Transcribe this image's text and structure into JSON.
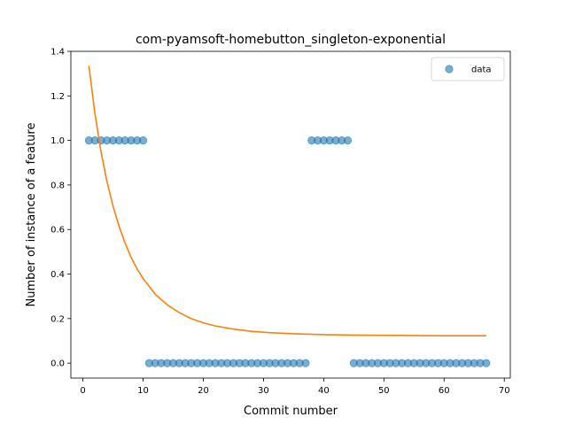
{
  "chart_data": {
    "type": "scatter",
    "title": "com-pyamsoft-homebutton_singleton-exponential",
    "xlabel": "Commit number",
    "ylabel": "Number of instance of a feature",
    "xlim": [
      -2,
      71
    ],
    "ylim": [
      -0.067,
      1.4
    ],
    "xticks": [
      0,
      10,
      20,
      30,
      40,
      50,
      60,
      70
    ],
    "yticks": [
      0.0,
      0.2,
      0.4,
      0.6,
      0.8,
      1.0,
      1.2,
      1.4
    ],
    "legend": {
      "placement": "top-right",
      "entries": [
        "data"
      ]
    },
    "grid": false,
    "series": [
      {
        "name": "data",
        "kind": "points",
        "color": "#1f77b4",
        "x": [
          1,
          2,
          3,
          4,
          5,
          6,
          7,
          8,
          9,
          10,
          11,
          12,
          13,
          14,
          15,
          16,
          17,
          18,
          19,
          20,
          21,
          22,
          23,
          24,
          25,
          26,
          27,
          28,
          29,
          30,
          31,
          32,
          33,
          34,
          35,
          36,
          37,
          38,
          39,
          40,
          41,
          42,
          43,
          44,
          45,
          46,
          47,
          48,
          49,
          50,
          51,
          52,
          53,
          54,
          55,
          56,
          57,
          58,
          59,
          60,
          61,
          62,
          63,
          64,
          65,
          66,
          67
        ],
        "y": [
          1,
          1,
          1,
          1,
          1,
          1,
          1,
          1,
          1,
          1,
          0,
          0,
          0,
          0,
          0,
          0,
          0,
          0,
          0,
          0,
          0,
          0,
          0,
          0,
          0,
          0,
          0,
          0,
          0,
          0,
          0,
          0,
          0,
          0,
          0,
          0,
          0,
          1,
          1,
          1,
          1,
          1,
          1,
          1,
          0,
          0,
          0,
          0,
          0,
          0,
          0,
          0,
          0,
          0,
          0,
          0,
          0,
          0,
          0,
          0,
          0,
          0,
          0,
          0,
          0,
          0,
          0
        ]
      },
      {
        "kind": "fit-line",
        "color": "#ff7f0e",
        "x": [
          1,
          2,
          3,
          4,
          5,
          6,
          7,
          8,
          9,
          10,
          12,
          14,
          16,
          18,
          20,
          22,
          25,
          28,
          31,
          35,
          40,
          45,
          50,
          55,
          60,
          67
        ],
        "y": [
          1.335,
          1.12,
          0.95,
          0.815,
          0.705,
          0.615,
          0.54,
          0.475,
          0.423,
          0.38,
          0.31,
          0.262,
          0.227,
          0.2,
          0.181,
          0.167,
          0.153,
          0.143,
          0.137,
          0.132,
          0.128,
          0.126,
          0.125,
          0.124,
          0.123,
          0.123
        ]
      }
    ]
  }
}
